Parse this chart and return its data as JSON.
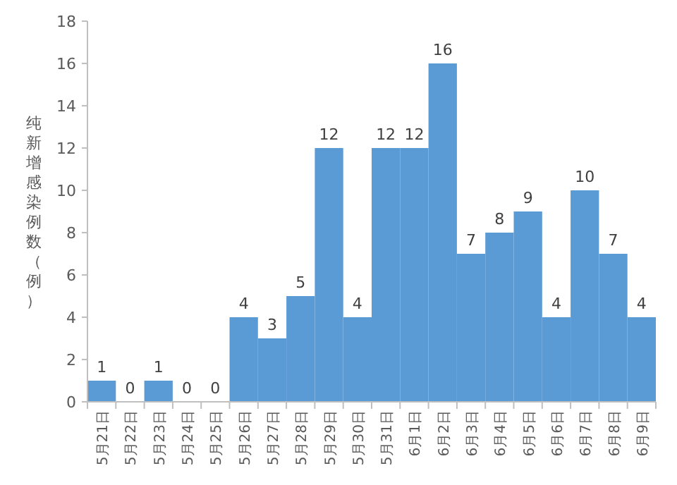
{
  "chart_data": {
    "type": "bar",
    "ylabel": "纯新增感染例数（例）",
    "categories": [
      "5月21日",
      "5月22日",
      "5月23日",
      "5月24日",
      "5月25日",
      "5月26日",
      "5月27日",
      "5月28日",
      "5月29日",
      "5月30日",
      "5月31日",
      "6月1日",
      "6月2日",
      "6月3日",
      "6月4日",
      "6月5日",
      "6月6日",
      "6月7日",
      "6月8日",
      "6月9日"
    ],
    "values": [
      1,
      0,
      1,
      0,
      0,
      4,
      3,
      5,
      12,
      4,
      12,
      12,
      16,
      7,
      8,
      9,
      4,
      10,
      7,
      4
    ],
    "color": "#5b9bd5",
    "ylim": [
      0,
      18
    ],
    "yticks": [
      0,
      2,
      4,
      6,
      8,
      10,
      12,
      14,
      16,
      18
    ],
    "data_labels": true
  }
}
